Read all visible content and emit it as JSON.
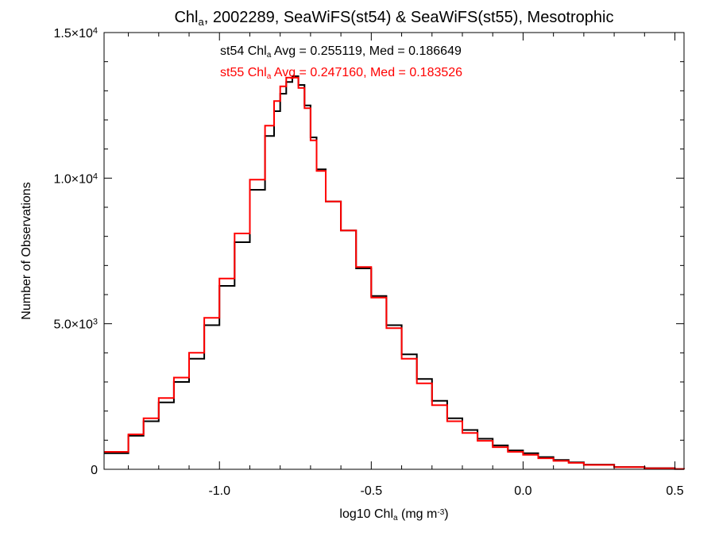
{
  "chart_data": {
    "type": "line",
    "title_parts": [
      "Chl",
      "a",
      ", 2002289, SeaWiFS(st54) & SeaWiFS(st55), Mesotrophic"
    ],
    "xlabel_parts": [
      "log10 Chl",
      "a",
      " (mg m",
      "-3",
      ")"
    ],
    "ylabel": "Number of Observations",
    "xlim": [
      -1.38,
      0.53
    ],
    "ylim": [
      0,
      15000
    ],
    "x_ticks": [
      {
        "value": -1.0,
        "label": "-1.0"
      },
      {
        "value": -0.5,
        "label": "-0.5"
      },
      {
        "value": 0.0,
        "label": "0.0"
      },
      {
        "value": 0.5,
        "label": "0.5"
      }
    ],
    "y_ticks": [
      {
        "value": 0,
        "mant": "0",
        "exp": ""
      },
      {
        "value": 5000,
        "mant": "5.0×10",
        "exp": "3"
      },
      {
        "value": 10000,
        "mant": "1.0×10",
        "exp": "4"
      },
      {
        "value": 15000,
        "mant": "1.5×10",
        "exp": "4"
      }
    ],
    "annotations": [
      {
        "parts": [
          "st54 Chl",
          "a",
          " Avg = 0.255119, Med = 0.186649"
        ],
        "color": "#000000"
      },
      {
        "parts": [
          "st55 Chl",
          "a",
          " Avg = 0.247160, Med = 0.183526"
        ],
        "color": "#ff0000"
      }
    ],
    "series": [
      {
        "color": "#000000",
        "style": "step",
        "x": [
          -1.38,
          -1.3,
          -1.25,
          -1.2,
          -1.15,
          -1.1,
          -1.05,
          -1.0,
          -0.95,
          -0.9,
          -0.85,
          -0.82,
          -0.8,
          -0.78,
          -0.76,
          -0.74,
          -0.72,
          -0.7,
          -0.68,
          -0.65,
          -0.6,
          -0.55,
          -0.5,
          -0.45,
          -0.4,
          -0.35,
          -0.3,
          -0.25,
          -0.2,
          -0.15,
          -0.1,
          -0.05,
          0.0,
          0.05,
          0.1,
          0.15,
          0.2,
          0.3,
          0.4,
          0.5,
          0.53
        ],
        "values": [
          550,
          1150,
          1650,
          2300,
          3000,
          3800,
          4950,
          6300,
          7800,
          9600,
          11450,
          12300,
          12900,
          13300,
          13500,
          13200,
          12500,
          11400,
          10300,
          9200,
          8200,
          6900,
          5950,
          4950,
          3950,
          3100,
          2350,
          1750,
          1350,
          1050,
          820,
          650,
          550,
          420,
          320,
          240,
          160,
          80,
          40,
          10,
          0
        ]
      },
      {
        "color": "#ff0000",
        "style": "step",
        "x": [
          -1.38,
          -1.3,
          -1.25,
          -1.2,
          -1.15,
          -1.1,
          -1.05,
          -1.0,
          -0.95,
          -0.9,
          -0.85,
          -0.82,
          -0.8,
          -0.78,
          -0.76,
          -0.74,
          -0.72,
          -0.7,
          -0.68,
          -0.65,
          -0.6,
          -0.55,
          -0.5,
          -0.45,
          -0.4,
          -0.35,
          -0.3,
          -0.25,
          -0.2,
          -0.15,
          -0.1,
          -0.05,
          0.0,
          0.05,
          0.1,
          0.15,
          0.2,
          0.3,
          0.4,
          0.5,
          0.53
        ],
        "values": [
          600,
          1200,
          1750,
          2450,
          3150,
          4000,
          5200,
          6550,
          8100,
          9950,
          11800,
          12650,
          13150,
          13450,
          13450,
          13100,
          12400,
          11300,
          10250,
          9200,
          8200,
          6950,
          5900,
          4850,
          3800,
          2950,
          2200,
          1650,
          1250,
          980,
          760,
          600,
          500,
          380,
          290,
          220,
          150,
          75,
          35,
          10,
          0
        ]
      }
    ]
  }
}
